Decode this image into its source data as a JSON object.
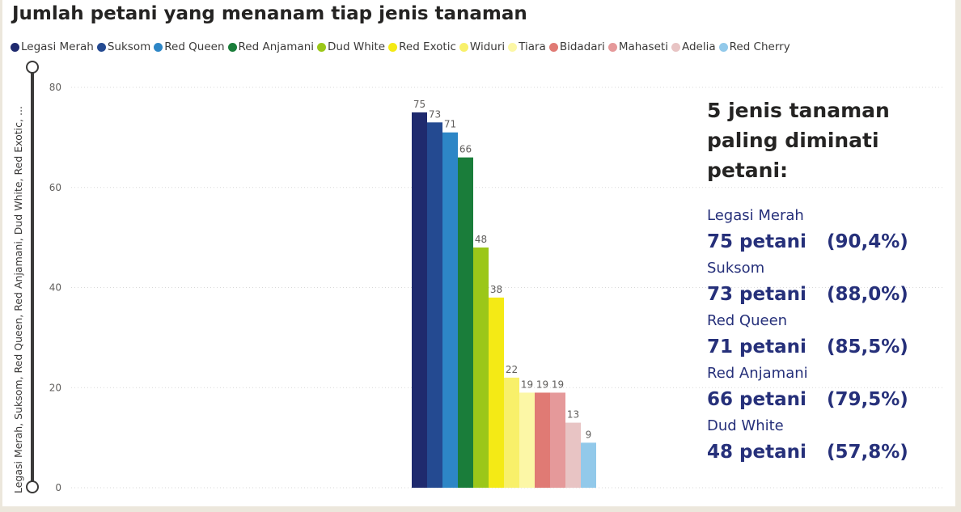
{
  "title": "Jumlah petani yang menanam tiap jenis tanaman",
  "axis_title": "Legasi Merah, Suksom, Red Queen, Red Anjamani, Dud White, Red Exotic, ...",
  "chart_data": {
    "type": "bar",
    "title": "Jumlah petani yang menanam tiap jenis tanaman",
    "categories": [
      "Legasi Merah",
      "Suksom",
      "Red Queen",
      "Red Anjamani",
      "Dud White",
      "Red Exotic",
      "Widuri",
      "Tiara",
      "Bidadari",
      "Mahaseti",
      "Adelia",
      "Red Cherry"
    ],
    "values": [
      75,
      73,
      71,
      66,
      48,
      38,
      22,
      19,
      19,
      19,
      13,
      9
    ],
    "colors": [
      "#1f2a6e",
      "#244a91",
      "#2d86c6",
      "#1a7d3a",
      "#9bc719",
      "#f4ea15",
      "#f8f06a",
      "#fcf7a6",
      "#e07a74",
      "#e5999a",
      "#e8c4c4",
      "#92c9ea"
    ],
    "ylim": [
      0,
      80
    ],
    "yticks": [
      0,
      20,
      40,
      60,
      80
    ],
    "grid": true,
    "legend": "top-left",
    "data_labels": true
  },
  "insight": {
    "heading": "5 jenis tanaman paling diminati petani:",
    "items": [
      {
        "name": "Legasi Merah",
        "count": "75 petani",
        "percent": "(90,4%)"
      },
      {
        "name": "Suksom",
        "count": "73 petani",
        "percent": "(88,0%)"
      },
      {
        "name": "Red Queen",
        "count": "71 petani",
        "percent": "(85,5%)"
      },
      {
        "name": "Red Anjamani",
        "count": "66 petani",
        "percent": "(79,5%)"
      },
      {
        "name": "Dud White",
        "count": "48 petani",
        "percent": "(57,8%)"
      }
    ]
  }
}
